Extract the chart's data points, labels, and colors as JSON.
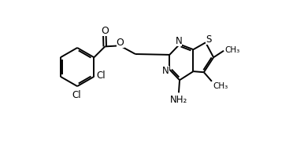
{
  "bg_color": "#ffffff",
  "line_color": "#000000",
  "line_width": 1.4,
  "font_size": 8.5,
  "xlim": [
    0,
    12.5
  ],
  "ylim": [
    1.0,
    9.0
  ]
}
